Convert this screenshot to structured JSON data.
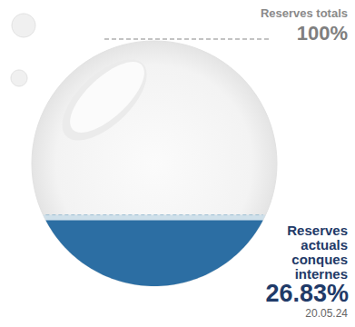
{
  "chart_data": {
    "type": "liquid",
    "total": {
      "name": "Reserves totals",
      "value": 100,
      "label": "100%"
    },
    "series": [
      {
        "name": "Reserves actuals conques internes",
        "values": [
          26.83
        ],
        "value_labels": [
          "26.83%"
        ],
        "color": "#2c6ea3"
      }
    ],
    "date": "20.05.24",
    "ylim": [
      0,
      100
    ],
    "tick_labels": false,
    "data_labels": true
  }
}
